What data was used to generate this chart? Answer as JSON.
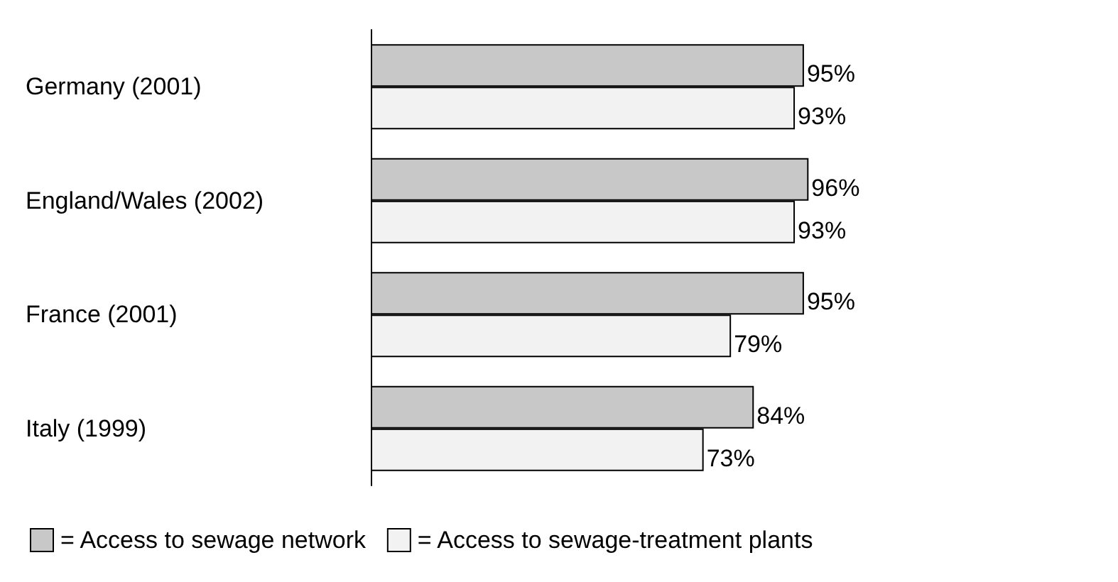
{
  "chart_data": {
    "type": "bar",
    "orientation": "horizontal",
    "categories": [
      "Germany (2001)",
      "England/Wales (2002)",
      "France (2001)",
      "Italy (1999)"
    ],
    "series": [
      {
        "name": "= Access to sewage network",
        "color": "#c8c8c8",
        "values": [
          95,
          96,
          95,
          84
        ],
        "value_labels": [
          "95%",
          "96%",
          "95%",
          "84%"
        ]
      },
      {
        "name": "= Access to sewage-treatment plants",
        "color": "#f2f2f2",
        "values": [
          93,
          93,
          79,
          73
        ],
        "value_labels": [
          "93%",
          "93%",
          "79%",
          "73%"
        ]
      }
    ],
    "legend": "bottom left"
  }
}
